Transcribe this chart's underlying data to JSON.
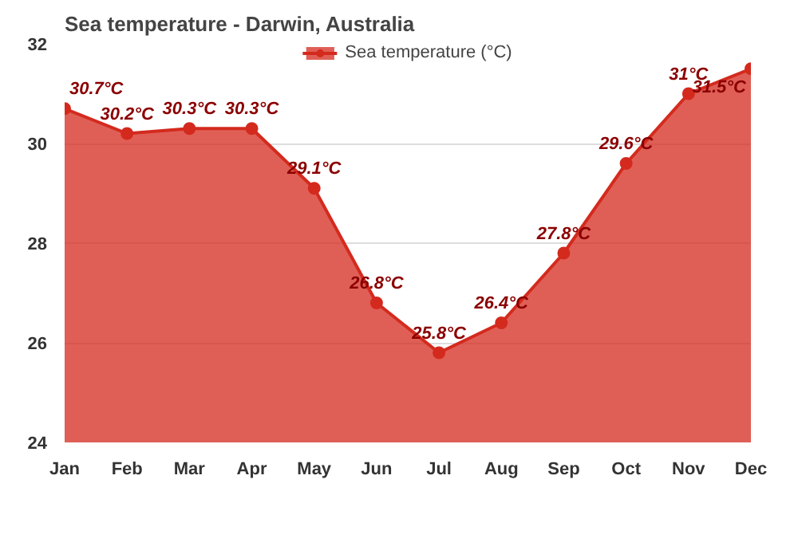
{
  "chart_data": {
    "type": "area",
    "title": "Sea temperature - Darwin, Australia",
    "categories": [
      "Jan",
      "Feb",
      "Mar",
      "Apr",
      "May",
      "Jun",
      "Jul",
      "Aug",
      "Sep",
      "Oct",
      "Nov",
      "Dec"
    ],
    "series": [
      {
        "name": "Sea temperature (°C)",
        "color": "#d42a1e",
        "values": [
          30.7,
          30.2,
          30.3,
          30.3,
          29.1,
          26.8,
          25.8,
          26.4,
          27.8,
          29.6,
          31,
          31.5
        ],
        "value_labels": [
          "30.7°C",
          "30.2°C",
          "30.3°C",
          "30.3°C",
          "29.1°C",
          "26.8°C",
          "25.8°C",
          "26.4°C",
          "27.8°C",
          "29.6°C",
          "31°C",
          "31.5°C"
        ]
      }
    ],
    "ylim": [
      24,
      32
    ],
    "yticks": [
      24,
      26,
      28,
      30,
      32
    ],
    "grid": "y",
    "legend": "top",
    "marker": "circle"
  }
}
